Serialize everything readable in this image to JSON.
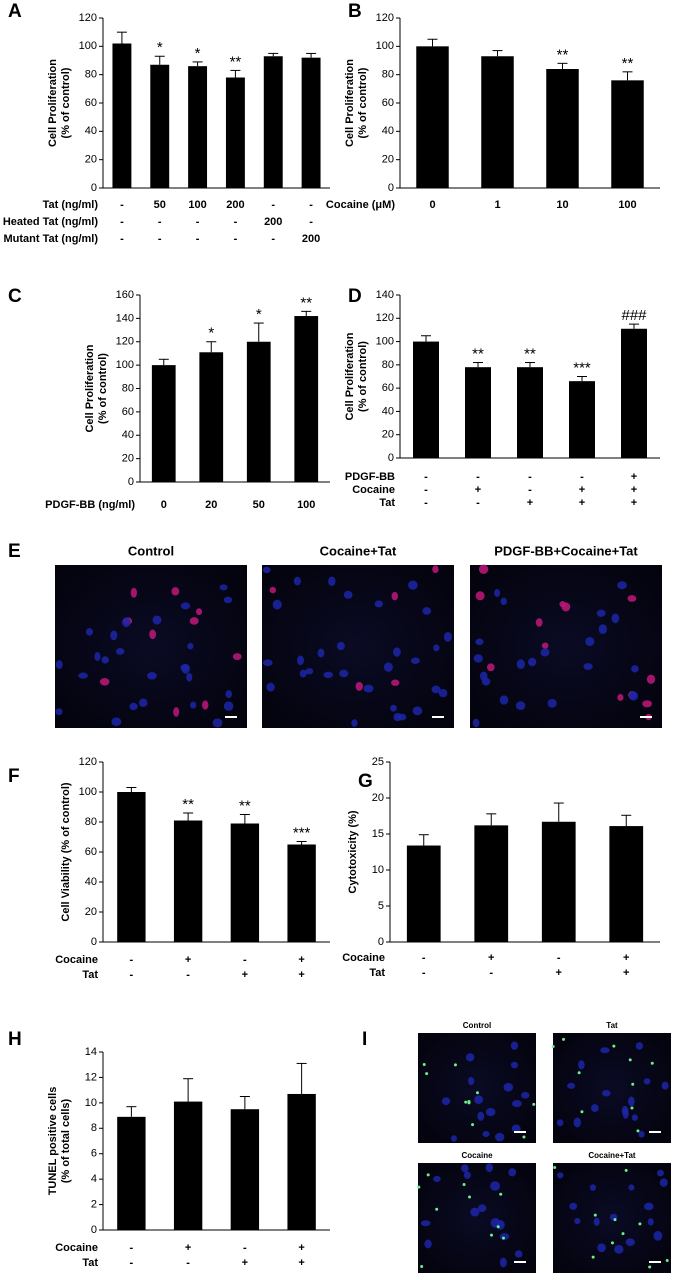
{
  "chart_data": [
    {
      "type": "bar",
      "panel": "A",
      "ylabel": [
        "Cell Proliferation",
        "(% of control)"
      ],
      "color": "#000000",
      "values": [
        102,
        87,
        86,
        78,
        93,
        92
      ],
      "errors": [
        8,
        6,
        3,
        5,
        2,
        3
      ],
      "significance": [
        null,
        "*",
        "*",
        "**",
        null,
        null
      ],
      "conditions": [
        {
          "label": "Tat (ng/ml)",
          "values": [
            "-",
            "50",
            "100",
            "200",
            "-",
            "-"
          ]
        },
        {
          "label": "Heated Tat (ng/ml)",
          "values": [
            "-",
            "-",
            "-",
            "-",
            "200",
            "-"
          ]
        },
        {
          "label": "Mutant Tat (ng/ml)",
          "values": [
            "-",
            "-",
            "-",
            "-",
            "-",
            "200"
          ]
        }
      ],
      "ylim": [
        0,
        120
      ],
      "yticks": [
        0,
        20,
        40,
        60,
        80,
        100,
        120
      ]
    },
    {
      "type": "bar",
      "panel": "B",
      "ylabel": [
        "Cell Proliferation",
        "(% of control)"
      ],
      "color": "#000000",
      "values": [
        100,
        93,
        84,
        76
      ],
      "errors": [
        5,
        4,
        4,
        6
      ],
      "significance": [
        null,
        null,
        "**",
        "**"
      ],
      "conditions": [
        {
          "label": "Cocaine (μM)",
          "values": [
            "0",
            "1",
            "10",
            "100"
          ]
        }
      ],
      "ylim": [
        0,
        120
      ],
      "yticks": [
        0,
        20,
        40,
        60,
        80,
        100,
        120
      ]
    },
    {
      "type": "bar",
      "panel": "C",
      "ylabel": [
        "Cell Proliferation",
        "(% of control)"
      ],
      "color": "#000000",
      "values": [
        100,
        111,
        120,
        142
      ],
      "errors": [
        5,
        9,
        16,
        4
      ],
      "significance": [
        null,
        "*",
        "*",
        "**"
      ],
      "conditions": [
        {
          "label": "PDGF-BB (ng/ml)",
          "values": [
            "0",
            "20",
            "50",
            "100"
          ]
        }
      ],
      "ylim": [
        0,
        160
      ],
      "yticks": [
        0,
        20,
        40,
        60,
        80,
        100,
        120,
        140,
        160
      ]
    },
    {
      "type": "bar",
      "panel": "D",
      "ylabel": [
        "Cell Proliferation",
        "(% of control)"
      ],
      "color": "#000000",
      "values": [
        100,
        78,
        78,
        66,
        111
      ],
      "errors": [
        5,
        4,
        4,
        4,
        4
      ],
      "significance": [
        null,
        "**",
        "**",
        "***",
        "###"
      ],
      "conditions": [
        {
          "label": "PDGF-BB",
          "values": [
            "-",
            "-",
            "-",
            "-",
            "+"
          ]
        },
        {
          "label": "Cocaine",
          "values": [
            "-",
            "+",
            "-",
            "+",
            "+"
          ]
        },
        {
          "label": "Tat",
          "values": [
            "-",
            "-",
            "+",
            "+",
            "+"
          ]
        }
      ],
      "ylim": [
        0,
        140
      ],
      "yticks": [
        0,
        20,
        40,
        60,
        80,
        100,
        120,
        140
      ]
    },
    {
      "type": "bar",
      "panel": "F",
      "ylabel": [
        "Cell Viability (% of control)"
      ],
      "color": "#000000",
      "values": [
        100,
        81,
        79,
        65
      ],
      "errors": [
        3,
        5,
        6,
        2
      ],
      "significance": [
        null,
        "**",
        "**",
        "***"
      ],
      "conditions": [
        {
          "label": "Cocaine",
          "values": [
            "-",
            "+",
            "-",
            "+"
          ]
        },
        {
          "label": "Tat",
          "values": [
            "-",
            "-",
            "+",
            "+"
          ]
        }
      ],
      "ylim": [
        0,
        120
      ],
      "yticks": [
        0,
        20,
        40,
        60,
        80,
        100,
        120
      ]
    },
    {
      "type": "bar",
      "panel": "G",
      "ylabel": [
        "Cytotoxicity (%)"
      ],
      "color": "#000000",
      "values": [
        13.4,
        16.2,
        16.7,
        16.1
      ],
      "errors": [
        1.5,
        1.6,
        2.6,
        1.5
      ],
      "conditions": [
        {
          "label": "Cocaine",
          "values": [
            "-",
            "+",
            "-",
            "+"
          ]
        },
        {
          "label": "Tat",
          "values": [
            "-",
            "-",
            "+",
            "+"
          ]
        }
      ],
      "ylim": [
        0,
        25
      ],
      "yticks": [
        0,
        5,
        10,
        15,
        20,
        25
      ]
    },
    {
      "type": "bar",
      "panel": "H",
      "ylabel": [
        "TUNEL positive cells",
        "(% of total cells)"
      ],
      "color": "#000000",
      "values": [
        8.9,
        10.1,
        9.5,
        10.7
      ],
      "errors": [
        0.8,
        1.8,
        1.0,
        2.4
      ],
      "conditions": [
        {
          "label": "Cocaine",
          "values": [
            "-",
            "+",
            "-",
            "+"
          ]
        },
        {
          "label": "Tat",
          "values": [
            "-",
            "-",
            "+",
            "+"
          ]
        }
      ],
      "ylim": [
        0,
        14
      ],
      "yticks": [
        0,
        2,
        4,
        6,
        8,
        10,
        12,
        14
      ]
    }
  ],
  "image_panels": [
    {
      "panel": "E",
      "captions": [
        "Control",
        "Cocaine+Tat",
        "PDGF-BB+Cocaine+Tat"
      ]
    },
    {
      "panel": "I",
      "captions": [
        "Control",
        "Tat",
        "Cocaine",
        "Cocaine+Tat"
      ]
    }
  ]
}
